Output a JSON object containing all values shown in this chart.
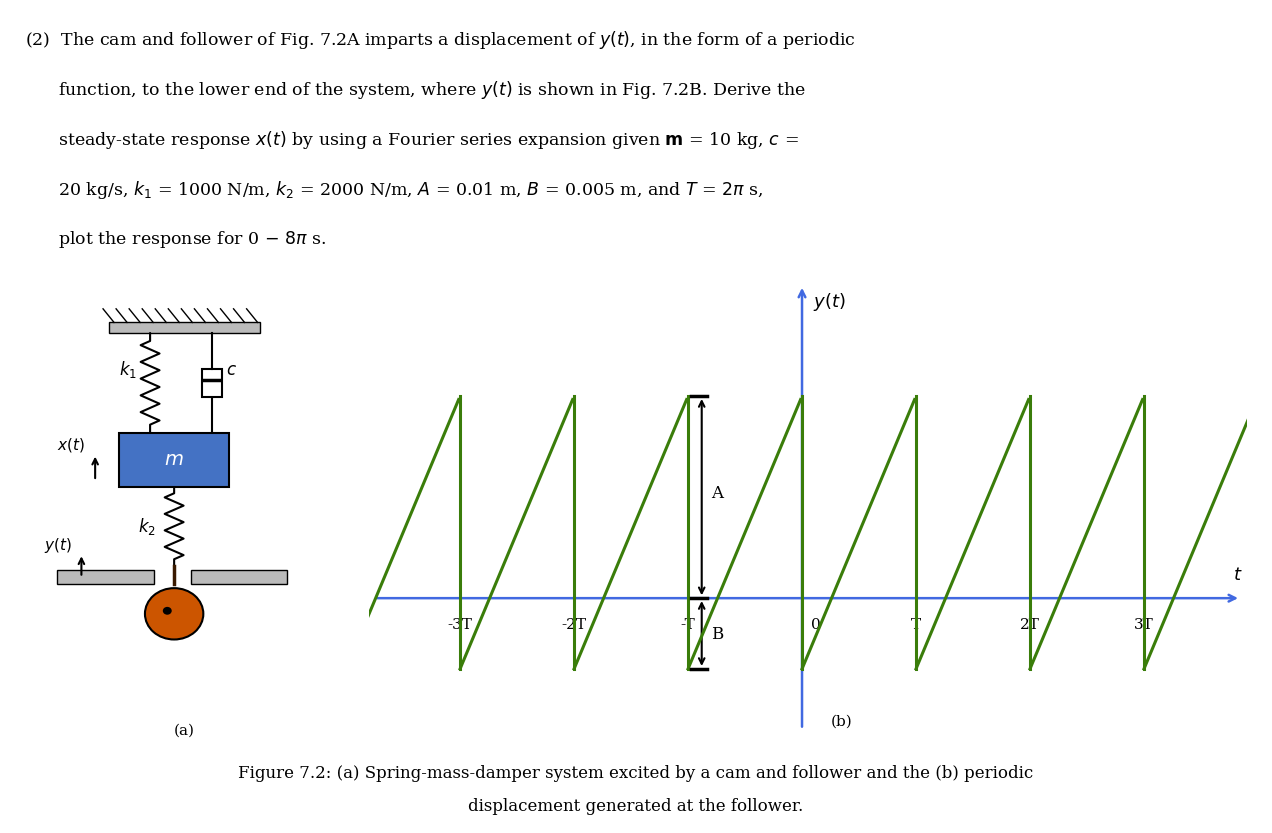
{
  "bg_color": "#ffffff",
  "diagram_a_label": "(a)",
  "diagram_b_label": "(b)",
  "graph_line_color": "#3a7d0a",
  "graph_axis_color": "#4169E1",
  "mass_box_color": "#4472c4",
  "mass_box_text_color": "#ffffff",
  "wall_color": "#aaaaaa",
  "cam_color": "#cc5500",
  "spring_color": "#000000",
  "damper_color": "#000000",
  "x_ticks": [
    "-3T",
    "-2T",
    "-T",
    "0",
    "T",
    "2T",
    "3T"
  ],
  "x_tick_vals": [
    -3,
    -2,
    -1,
    0,
    1,
    2,
    3
  ],
  "y_axis_label": "$y(t)$",
  "x_axis_label": "$t$",
  "A_label": "A",
  "B_label": "B",
  "A_val": 1.0,
  "B_val": 0.35,
  "text_lines": [
    "(2)  The cam and follower of Fig. 7.2A imparts a displacement of $y(t)$, in the form of a periodic",
    "      function, to the lower end of the system, where $y(t)$ is shown in Fig. 7.2B. Derive the",
    "      steady-state response $x(t)$ by using a Fourier series expansion given $\\mathbf{m}$ = 10 kg, $c$ =",
    "      20 kg/s, $k_1$ = 1000 N/m, $k_2$ = 2000 N/m, $A$ = 0.01 m, $B$ = 0.005 m, and $T$ = $2\\pi$ s,",
    "      plot the response for 0 $-$ $8\\pi$ s."
  ],
  "caption_line1": "Figure 7.2: (a) Spring-mass-damper system excited by a cam and follower and the (b) periodic",
  "caption_line2": "displacement generated at the follower."
}
